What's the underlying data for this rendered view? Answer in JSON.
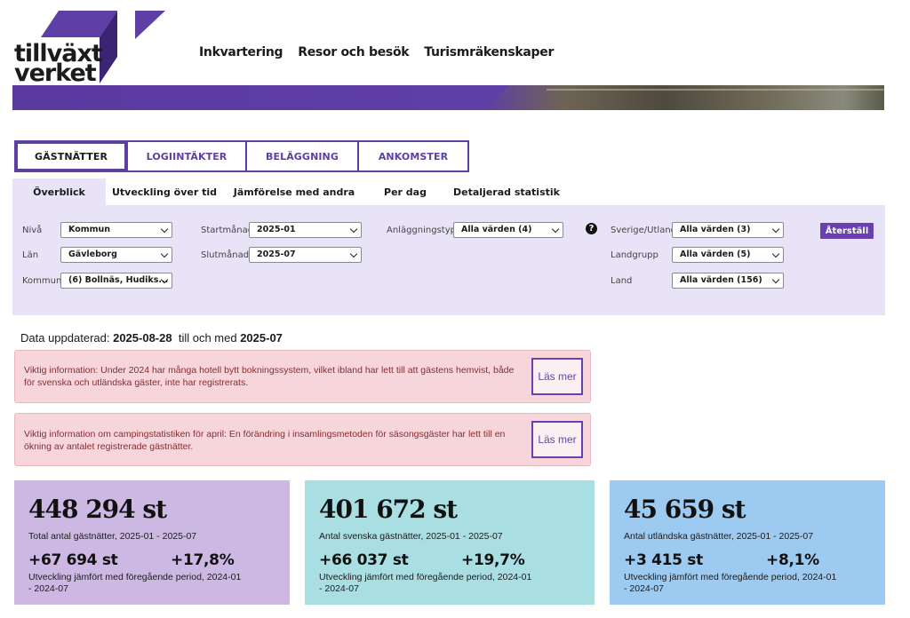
{
  "logo": {
    "line1": "tillväxt",
    "line2": "verket",
    "color": "#5e3fa5"
  },
  "topnav": [
    "Inkvartering",
    "Resor och besök",
    "Turismräkenskaper"
  ],
  "measure_tabs": [
    {
      "label": "GÄSTNÄTTER",
      "active": true
    },
    {
      "label": "LOGIINTÄKTER",
      "active": false
    },
    {
      "label": "BELÄGGNING",
      "active": false
    },
    {
      "label": "ANKOMSTER",
      "active": false
    }
  ],
  "view_tabs": [
    {
      "label": "Överblick",
      "active": true
    },
    {
      "label": "Utveckling över tid",
      "active": false
    },
    {
      "label": "Jämförelse med andra",
      "active": false
    },
    {
      "label": "Per dag",
      "active": false
    },
    {
      "label": "Detaljerad statistik",
      "active": false
    }
  ],
  "filters": {
    "niva": {
      "label": "Nivå",
      "value": "Kommun"
    },
    "lan": {
      "label": "Län",
      "value": "Gävleborg"
    },
    "kommun": {
      "label": "Kommun",
      "value": "(6) Bollnäs, Hudiks..."
    },
    "startmanad": {
      "label": "Startmånad",
      "value": "2025-01"
    },
    "slutmanad": {
      "label": "Slutmånad",
      "value": "2025-07"
    },
    "anlaggningstyp": {
      "label": "Anläggningstyp",
      "value": "Alla värden (4)"
    },
    "sverige_utland": {
      "label": "Sverige/Utland",
      "value": "Alla värden (3)"
    },
    "landgrupp": {
      "label": "Landgrupp",
      "value": "Alla värden (5)"
    },
    "land": {
      "label": "Land",
      "value": "Alla värden (156)"
    },
    "help_icon": "question-icon",
    "reset_label": "Återställ"
  },
  "updated": {
    "prefix": "Data uppdaterad:",
    "date": "2025-08-28",
    "middle": "till och med",
    "period": "2025-07"
  },
  "info_boxes": [
    {
      "text": "Viktig information: Under 2024 har många hotell bytt bokningssystem, vilket ibland har lett till att gästens hemvist, både för svenska och utländska gäster, inte har registrerats.",
      "button": "Läs mer"
    },
    {
      "text": "Viktig information om campingstatistiken för april: En förändring i insamlingsmetoden för säsongsgäster har lett till en ökning av antalet registrerade gästnätter.",
      "button": "Läs mer"
    }
  ],
  "cards": [
    {
      "value": "448 294 st",
      "subtitle": "Total antal gästnätter, 2025-01 - 2025-07",
      "delta_abs": "+67 694 st",
      "delta_pct": "+17,8%",
      "footer": "Utveckling jämfört med föregående period, 2024-01 - 2024-07",
      "color": "#cdb8e4"
    },
    {
      "value": "401 672 st",
      "subtitle": "Antal svenska gästnätter, 2025-01 - 2025-07",
      "delta_abs": "+66 037 st",
      "delta_pct": "+19,7%",
      "footer": "Utveckling jämfört med föregående period, 2024-01 - 2024-07",
      "color": "#a9dee3"
    },
    {
      "value": "45 659 st",
      "subtitle": "Antal utländska gästnätter, 2025-01 - 2025-07",
      "delta_abs": "+3 415 st",
      "delta_pct": "+8,1%",
      "footer": "Utveckling jämfört med föregående period, 2024-01 - 2024-07",
      "color": "#9ccaf0"
    }
  ]
}
